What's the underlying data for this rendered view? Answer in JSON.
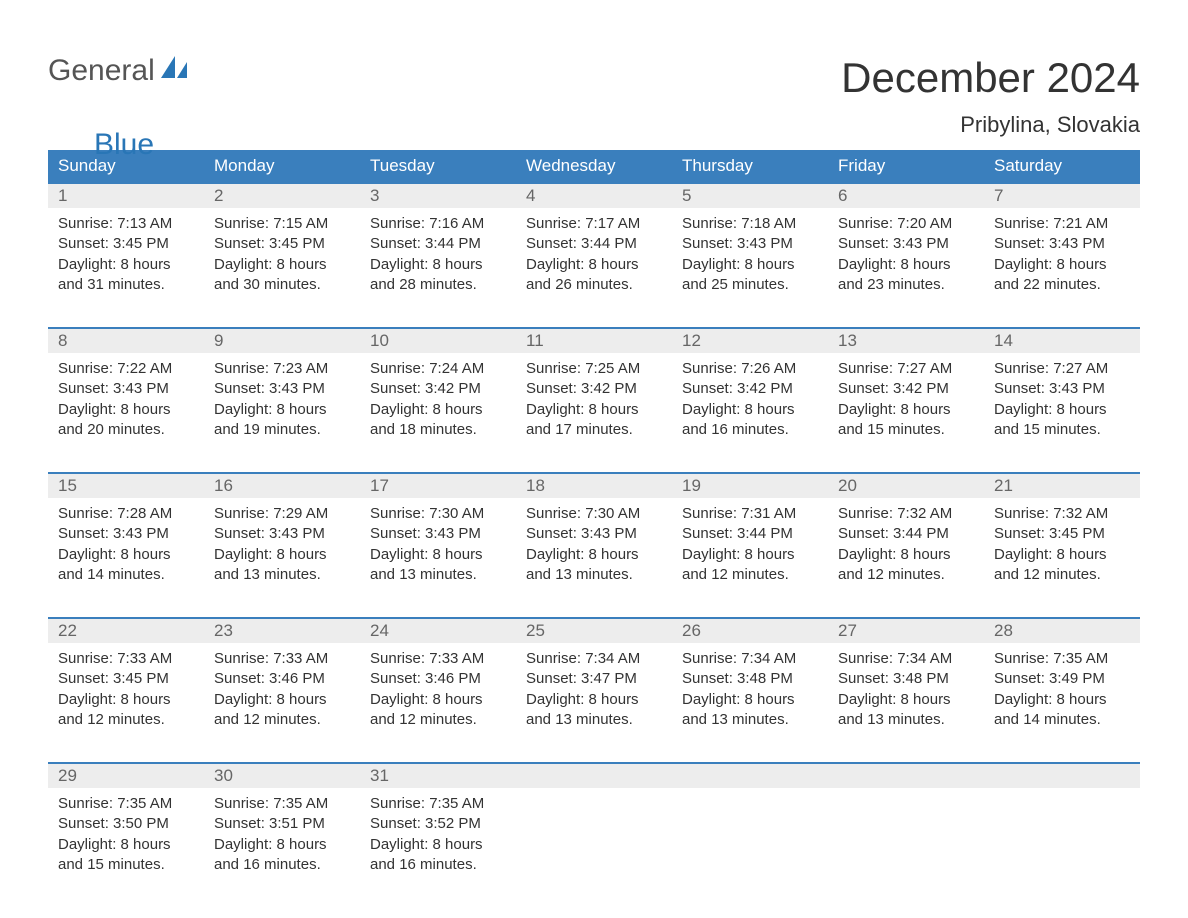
{
  "logo": {
    "text_general": "General",
    "text_blue": "Blue",
    "accent_color": "#2976b6"
  },
  "title": "December 2024",
  "location": "Pribylina, Slovakia",
  "colors": {
    "header_bg": "#3a7fbd",
    "header_text": "#ffffff",
    "week_border": "#3a7fbd",
    "day_num_bg": "#ededed",
    "day_num_text": "#666666",
    "body_text": "#333333",
    "background": "#ffffff"
  },
  "weekdays": [
    "Sunday",
    "Monday",
    "Tuesday",
    "Wednesday",
    "Thursday",
    "Friday",
    "Saturday"
  ],
  "weeks": [
    [
      {
        "num": "1",
        "sunrise": "Sunrise: 7:13 AM",
        "sunset": "Sunset: 3:45 PM",
        "day1": "Daylight: 8 hours",
        "day2": "and 31 minutes."
      },
      {
        "num": "2",
        "sunrise": "Sunrise: 7:15 AM",
        "sunset": "Sunset: 3:45 PM",
        "day1": "Daylight: 8 hours",
        "day2": "and 30 minutes."
      },
      {
        "num": "3",
        "sunrise": "Sunrise: 7:16 AM",
        "sunset": "Sunset: 3:44 PM",
        "day1": "Daylight: 8 hours",
        "day2": "and 28 minutes."
      },
      {
        "num": "4",
        "sunrise": "Sunrise: 7:17 AM",
        "sunset": "Sunset: 3:44 PM",
        "day1": "Daylight: 8 hours",
        "day2": "and 26 minutes."
      },
      {
        "num": "5",
        "sunrise": "Sunrise: 7:18 AM",
        "sunset": "Sunset: 3:43 PM",
        "day1": "Daylight: 8 hours",
        "day2": "and 25 minutes."
      },
      {
        "num": "6",
        "sunrise": "Sunrise: 7:20 AM",
        "sunset": "Sunset: 3:43 PM",
        "day1": "Daylight: 8 hours",
        "day2": "and 23 minutes."
      },
      {
        "num": "7",
        "sunrise": "Sunrise: 7:21 AM",
        "sunset": "Sunset: 3:43 PM",
        "day1": "Daylight: 8 hours",
        "day2": "and 22 minutes."
      }
    ],
    [
      {
        "num": "8",
        "sunrise": "Sunrise: 7:22 AM",
        "sunset": "Sunset: 3:43 PM",
        "day1": "Daylight: 8 hours",
        "day2": "and 20 minutes."
      },
      {
        "num": "9",
        "sunrise": "Sunrise: 7:23 AM",
        "sunset": "Sunset: 3:43 PM",
        "day1": "Daylight: 8 hours",
        "day2": "and 19 minutes."
      },
      {
        "num": "10",
        "sunrise": "Sunrise: 7:24 AM",
        "sunset": "Sunset: 3:42 PM",
        "day1": "Daylight: 8 hours",
        "day2": "and 18 minutes."
      },
      {
        "num": "11",
        "sunrise": "Sunrise: 7:25 AM",
        "sunset": "Sunset: 3:42 PM",
        "day1": "Daylight: 8 hours",
        "day2": "and 17 minutes."
      },
      {
        "num": "12",
        "sunrise": "Sunrise: 7:26 AM",
        "sunset": "Sunset: 3:42 PM",
        "day1": "Daylight: 8 hours",
        "day2": "and 16 minutes."
      },
      {
        "num": "13",
        "sunrise": "Sunrise: 7:27 AM",
        "sunset": "Sunset: 3:42 PM",
        "day1": "Daylight: 8 hours",
        "day2": "and 15 minutes."
      },
      {
        "num": "14",
        "sunrise": "Sunrise: 7:27 AM",
        "sunset": "Sunset: 3:43 PM",
        "day1": "Daylight: 8 hours",
        "day2": "and 15 minutes."
      }
    ],
    [
      {
        "num": "15",
        "sunrise": "Sunrise: 7:28 AM",
        "sunset": "Sunset: 3:43 PM",
        "day1": "Daylight: 8 hours",
        "day2": "and 14 minutes."
      },
      {
        "num": "16",
        "sunrise": "Sunrise: 7:29 AM",
        "sunset": "Sunset: 3:43 PM",
        "day1": "Daylight: 8 hours",
        "day2": "and 13 minutes."
      },
      {
        "num": "17",
        "sunrise": "Sunrise: 7:30 AM",
        "sunset": "Sunset: 3:43 PM",
        "day1": "Daylight: 8 hours",
        "day2": "and 13 minutes."
      },
      {
        "num": "18",
        "sunrise": "Sunrise: 7:30 AM",
        "sunset": "Sunset: 3:43 PM",
        "day1": "Daylight: 8 hours",
        "day2": "and 13 minutes."
      },
      {
        "num": "19",
        "sunrise": "Sunrise: 7:31 AM",
        "sunset": "Sunset: 3:44 PM",
        "day1": "Daylight: 8 hours",
        "day2": "and 12 minutes."
      },
      {
        "num": "20",
        "sunrise": "Sunrise: 7:32 AM",
        "sunset": "Sunset: 3:44 PM",
        "day1": "Daylight: 8 hours",
        "day2": "and 12 minutes."
      },
      {
        "num": "21",
        "sunrise": "Sunrise: 7:32 AM",
        "sunset": "Sunset: 3:45 PM",
        "day1": "Daylight: 8 hours",
        "day2": "and 12 minutes."
      }
    ],
    [
      {
        "num": "22",
        "sunrise": "Sunrise: 7:33 AM",
        "sunset": "Sunset: 3:45 PM",
        "day1": "Daylight: 8 hours",
        "day2": "and 12 minutes."
      },
      {
        "num": "23",
        "sunrise": "Sunrise: 7:33 AM",
        "sunset": "Sunset: 3:46 PM",
        "day1": "Daylight: 8 hours",
        "day2": "and 12 minutes."
      },
      {
        "num": "24",
        "sunrise": "Sunrise: 7:33 AM",
        "sunset": "Sunset: 3:46 PM",
        "day1": "Daylight: 8 hours",
        "day2": "and 12 minutes."
      },
      {
        "num": "25",
        "sunrise": "Sunrise: 7:34 AM",
        "sunset": "Sunset: 3:47 PM",
        "day1": "Daylight: 8 hours",
        "day2": "and 13 minutes."
      },
      {
        "num": "26",
        "sunrise": "Sunrise: 7:34 AM",
        "sunset": "Sunset: 3:48 PM",
        "day1": "Daylight: 8 hours",
        "day2": "and 13 minutes."
      },
      {
        "num": "27",
        "sunrise": "Sunrise: 7:34 AM",
        "sunset": "Sunset: 3:48 PM",
        "day1": "Daylight: 8 hours",
        "day2": "and 13 minutes."
      },
      {
        "num": "28",
        "sunrise": "Sunrise: 7:35 AM",
        "sunset": "Sunset: 3:49 PM",
        "day1": "Daylight: 8 hours",
        "day2": "and 14 minutes."
      }
    ],
    [
      {
        "num": "29",
        "sunrise": "Sunrise: 7:35 AM",
        "sunset": "Sunset: 3:50 PM",
        "day1": "Daylight: 8 hours",
        "day2": "and 15 minutes."
      },
      {
        "num": "30",
        "sunrise": "Sunrise: 7:35 AM",
        "sunset": "Sunset: 3:51 PM",
        "day1": "Daylight: 8 hours",
        "day2": "and 16 minutes."
      },
      {
        "num": "31",
        "sunrise": "Sunrise: 7:35 AM",
        "sunset": "Sunset: 3:52 PM",
        "day1": "Daylight: 8 hours",
        "day2": "and 16 minutes."
      },
      null,
      null,
      null,
      null
    ]
  ]
}
